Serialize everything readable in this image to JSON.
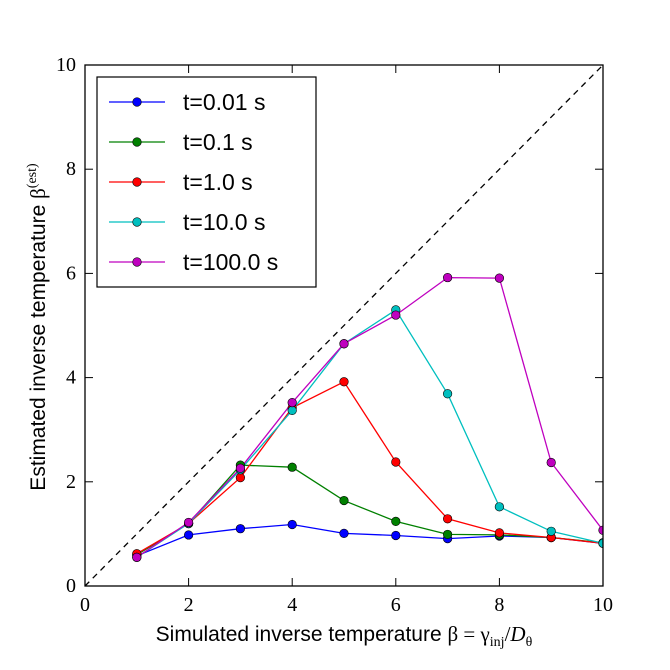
{
  "chart_data": {
    "type": "line",
    "title": "",
    "xlabel": "Simulated inverse temperature β = γ_inj/D_θ",
    "ylabel": "Estimated inverse temperature β^(est)",
    "xlim": [
      0,
      10
    ],
    "ylim": [
      0,
      10
    ],
    "xticks": [
      "0",
      "2",
      "4",
      "6",
      "8",
      "10"
    ],
    "yticks": [
      "0",
      "2",
      "4",
      "6",
      "8",
      "10"
    ],
    "grid": false,
    "legend_position": "top-left",
    "reference_line": {
      "style": "dashed",
      "color": "#000000",
      "from": [
        0,
        0
      ],
      "to": [
        10,
        10
      ]
    },
    "x": [
      1,
      2,
      3,
      4,
      5,
      6,
      7,
      8,
      9,
      10
    ],
    "series": [
      {
        "name": "t=0.01 s",
        "color": "#0000ff",
        "values": [
          0.58,
          0.98,
          1.1,
          1.18,
          1.01,
          0.97,
          0.91,
          0.96,
          0.93,
          0.82
        ]
      },
      {
        "name": "t=0.1 s",
        "color": "#008000",
        "values": [
          0.6,
          1.2,
          2.32,
          2.28,
          1.64,
          1.24,
          0.99,
          0.98,
          0.93,
          0.83
        ]
      },
      {
        "name": "t=1.0 s",
        "color": "#ff0000",
        "values": [
          0.62,
          1.2,
          2.08,
          3.42,
          3.92,
          2.38,
          1.29,
          1.02,
          0.93,
          0.82
        ]
      },
      {
        "name": "t=10.0 s",
        "color": "#00bfbf",
        "values": [
          0.55,
          1.2,
          2.23,
          3.37,
          4.65,
          5.3,
          3.69,
          1.52,
          1.05,
          0.82
        ]
      },
      {
        "name": "t=100.0 s",
        "color": "#bf00bf",
        "values": [
          0.55,
          1.22,
          2.26,
          3.52,
          4.65,
          5.2,
          5.92,
          5.91,
          2.37,
          1.07
        ]
      }
    ]
  }
}
